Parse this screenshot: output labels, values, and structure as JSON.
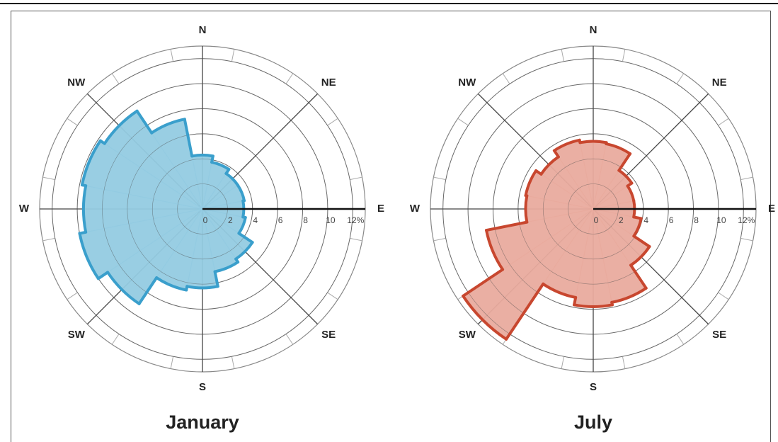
{
  "chart_data": [
    {
      "type": "windrose",
      "title": "January",
      "categories": [
        "N",
        null,
        "NE",
        null,
        "E",
        null,
        "SE",
        null,
        "S",
        null,
        "SW",
        null,
        "W",
        null,
        "NW",
        null
      ],
      "values": [
        4.3,
        3.8,
        3.4,
        3.4,
        3.3,
        3.5,
        4.8,
        5.1,
        6.3,
        6.6,
        9.1,
        10,
        9.5,
        9.8,
        9.4,
        7.3
      ],
      "fill": "#93cbe2",
      "color": "#3a9fcc",
      "rlim": [
        0,
        13
      ],
      "rticks": [
        0,
        2,
        4,
        6,
        8,
        10,
        {
          "value": 12,
          "label": "12%"
        }
      ],
      "grid": true
    },
    {
      "type": "windrose",
      "title": "July",
      "categories": [
        "N",
        null,
        "NE",
        null,
        "E",
        null,
        "SE",
        null,
        "S",
        null,
        "SW",
        null,
        "W",
        null,
        "NW",
        null
      ],
      "values": [
        5.4,
        5.3,
        3.7,
        3.3,
        3.3,
        3.9,
        5.4,
        7.6,
        7.8,
        7.2,
        12.5,
        8.7,
        5.4,
        5.5,
        5.0,
        5.6
      ],
      "fill": "#e9ab9e",
      "color": "#c8472f",
      "rlim": [
        0,
        13
      ],
      "rticks": [
        0,
        2,
        4,
        6,
        8,
        10,
        {
          "value": 12,
          "label": "12%"
        }
      ],
      "grid": true
    }
  ]
}
